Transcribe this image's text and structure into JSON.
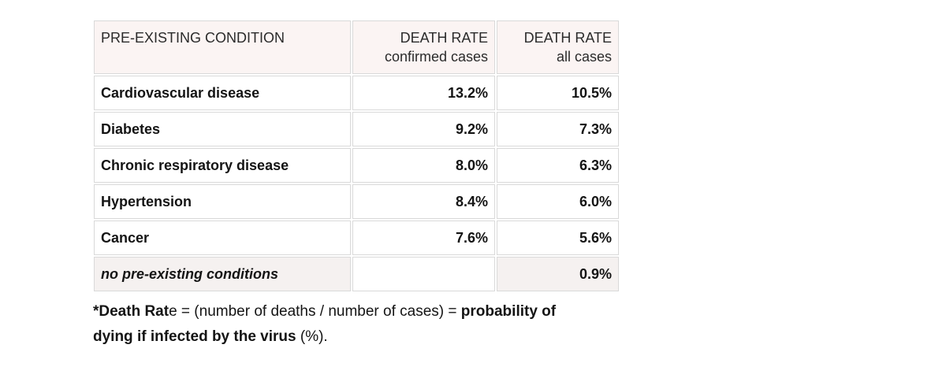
{
  "page": {
    "background": "#ffffff"
  },
  "colors": {
    "header_bg": "#fbf4f3",
    "footer_row_bg": "#f5f1f0",
    "cell_border": "#d9d9d9",
    "text": "#141414"
  },
  "table": {
    "headers": {
      "condition": "PRE-EXISTING CONDITION",
      "col2_line1": "DEATH RATE",
      "col2_line2": "confirmed cases",
      "col3_line1": "DEATH RATE",
      "col3_line2": "all cases"
    },
    "rows": [
      {
        "condition": "Cardiovascular disease",
        "confirmed": "13.2%",
        "all": "10.5%"
      },
      {
        "condition": "Diabetes",
        "confirmed": "9.2%",
        "all": "7.3%"
      },
      {
        "condition": "Chronic respiratory disease",
        "confirmed": "8.0%",
        "all": "6.3%"
      },
      {
        "condition": "Hypertension",
        "confirmed": "8.4%",
        "all": "6.0%"
      },
      {
        "condition": "Cancer",
        "confirmed": "7.6%",
        "all": "5.6%"
      },
      {
        "condition": "no pre-existing conditions",
        "confirmed": "",
        "all": "0.9%"
      }
    ]
  },
  "footnote": {
    "line1_bold1": "*Death Rat",
    "line1_regular1": "e = (number of deaths / number of cases) = ",
    "line1_bold2": "probability of",
    "line2_bold1": "dying if infected by the virus",
    "line2_regular1": " (%)."
  },
  "chart_data": {
    "type": "table",
    "title": "",
    "columns": [
      "PRE-EXISTING CONDITION",
      "DEATH RATE confirmed cases",
      "DEATH RATE all cases"
    ],
    "rows": [
      [
        "Cardiovascular disease",
        13.2,
        10.5
      ],
      [
        "Diabetes",
        9.2,
        7.3
      ],
      [
        "Chronic respiratory disease",
        8.0,
        6.3
      ],
      [
        "Hypertension",
        8.4,
        6.0
      ],
      [
        "Cancer",
        7.6,
        5.6
      ],
      [
        "no pre-existing conditions",
        null,
        0.9
      ]
    ],
    "units": "%",
    "footnote": "*Death Rate = (number of deaths / number of cases) = probability of dying if infected by the virus (%)."
  }
}
